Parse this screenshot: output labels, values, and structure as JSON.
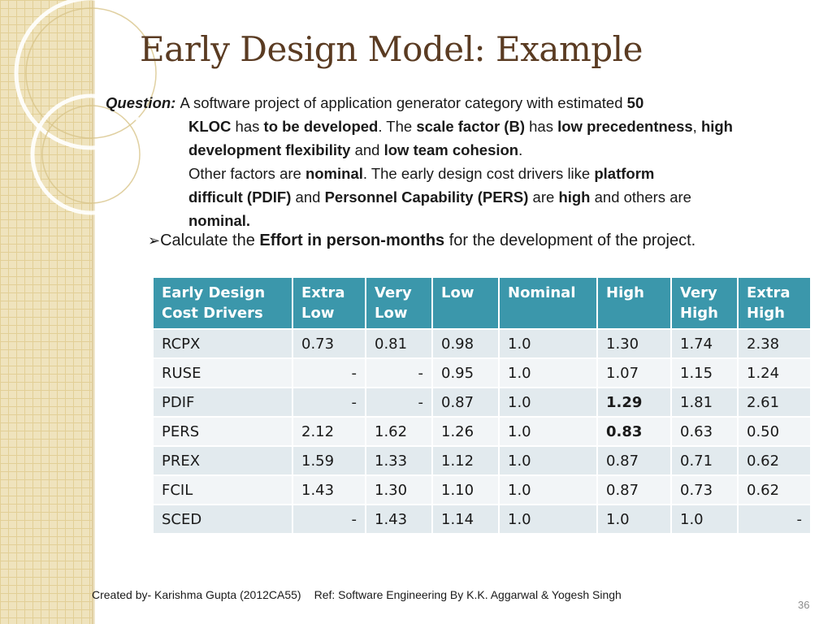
{
  "title": "Early Design Model: Example",
  "question": {
    "label": "Question:",
    "lines": [
      [
        {
          "t": "A software project of application generator category with estimated "
        },
        {
          "t": "50",
          "b": true
        }
      ],
      [
        {
          "t": "KLOC",
          "b": true
        },
        {
          "t": " has "
        },
        {
          "t": "to be developed",
          "b": true
        },
        {
          "t": ". The "
        },
        {
          "t": "scale factor (B)",
          "b": true
        },
        {
          "t": " has "
        },
        {
          "t": "low precedentness",
          "b": true
        },
        {
          "t": ", "
        },
        {
          "t": "high",
          "b": true
        }
      ],
      [
        {
          "t": "development  flexibility",
          "b": true
        },
        {
          "t": " and "
        },
        {
          "t": "low team cohesion",
          "b": true
        },
        {
          "t": "."
        }
      ],
      [
        {
          "t": "Other factors are "
        },
        {
          "t": "nominal",
          "b": true
        },
        {
          "t": ". The early design cost drivers like "
        },
        {
          "t": "platform",
          "b": true
        }
      ],
      [
        {
          "t": "difficult (PDIF)",
          "b": true
        },
        {
          "t": " and "
        },
        {
          "t": "Personnel Capability (PERS)",
          "b": true
        },
        {
          "t": " are "
        },
        {
          "t": "high",
          "b": true
        },
        {
          "t": " and others are"
        }
      ],
      [
        {
          "t": "nominal.",
          "b": true
        }
      ]
    ]
  },
  "bullet": {
    "arrow": "➢",
    "parts": [
      {
        "t": "Calculate the "
      },
      {
        "t": "Effort in person-months",
        "b": true
      },
      {
        "t": " for the development of the project."
      }
    ]
  },
  "table": {
    "headers": [
      [
        "Early Design",
        "Cost Drivers"
      ],
      [
        "Extra",
        "Low"
      ],
      [
        "Very",
        "Low"
      ],
      [
        "Low"
      ],
      [
        "Nominal"
      ],
      [
        "High"
      ],
      [
        "Very",
        "High"
      ],
      [
        "Extra",
        "High"
      ]
    ],
    "rows": [
      [
        {
          "v": "RCPX"
        },
        {
          "v": "0.73"
        },
        {
          "v": "0.81"
        },
        {
          "v": "0.98"
        },
        {
          "v": "1.0"
        },
        {
          "v": "1.30"
        },
        {
          "v": "1.74"
        },
        {
          "v": "2.38"
        }
      ],
      [
        {
          "v": "RUSE"
        },
        {
          "v": "-",
          "dash": true
        },
        {
          "v": "-",
          "dash": true
        },
        {
          "v": "0.95"
        },
        {
          "v": "1.0"
        },
        {
          "v": "1.07"
        },
        {
          "v": "1.15"
        },
        {
          "v": "1.24"
        }
      ],
      [
        {
          "v": "PDIF"
        },
        {
          "v": "-",
          "dash": true
        },
        {
          "v": "-",
          "dash": true
        },
        {
          "v": "0.87"
        },
        {
          "v": "1.0"
        },
        {
          "v": "1.29",
          "b": true
        },
        {
          "v": "1.81"
        },
        {
          "v": "2.61"
        }
      ],
      [
        {
          "v": "PERS"
        },
        {
          "v": "2.12"
        },
        {
          "v": "1.62"
        },
        {
          "v": "1.26"
        },
        {
          "v": "1.0"
        },
        {
          "v": "0.83",
          "b": true
        },
        {
          "v": "0.63"
        },
        {
          "v": "0.50"
        }
      ],
      [
        {
          "v": "PREX"
        },
        {
          "v": "1.59"
        },
        {
          "v": "1.33"
        },
        {
          "v": "1.12"
        },
        {
          "v": "1.0"
        },
        {
          "v": "0.87"
        },
        {
          "v": "0.71"
        },
        {
          "v": "0.62"
        }
      ],
      [
        {
          "v": "FCIL"
        },
        {
          "v": "1.43"
        },
        {
          "v": "1.30"
        },
        {
          "v": "1.10"
        },
        {
          "v": "1.0"
        },
        {
          "v": "0.87"
        },
        {
          "v": "0.73"
        },
        {
          "v": "0.62"
        }
      ],
      [
        {
          "v": "SCED"
        },
        {
          "v": "-",
          "dash": true
        },
        {
          "v": "1.43"
        },
        {
          "v": "1.14"
        },
        {
          "v": "1.0"
        },
        {
          "v": "1.0"
        },
        {
          "v": "1.0"
        },
        {
          "v": "-",
          "dash": true
        }
      ]
    ]
  },
  "footer": {
    "created": "Created by- Karishma Gupta (2012CA55)",
    "ref": "Ref:  Software Engineering By K.K. Aggarwal & Yogesh Singh"
  },
  "page_number": "36",
  "colors": {
    "title": "#5a3b22",
    "table_header": "#3b97ab",
    "row_odd": "#e2eaee",
    "row_even": "#f2f5f7",
    "sidebar": "#efe3bd"
  }
}
